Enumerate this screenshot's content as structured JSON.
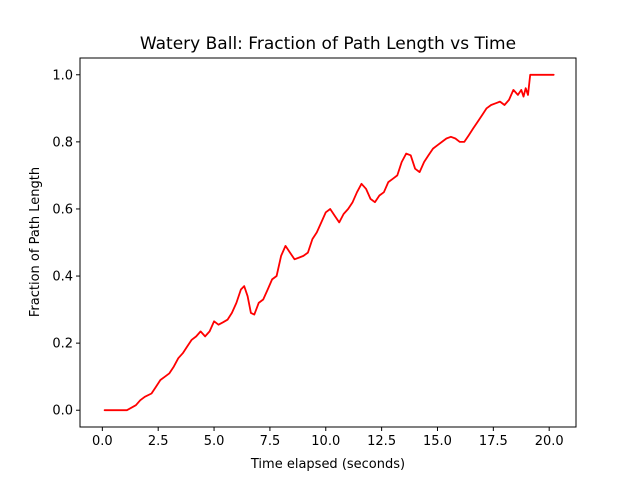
{
  "chart_data": {
    "type": "line",
    "title": "Watery Ball: Fraction of Path Length vs Time",
    "xlabel": "Time elapsed (seconds)",
    "ylabel": "Fraction of Path Length",
    "xlim": [
      -1.0,
      21.2
    ],
    "ylim": [
      -0.05,
      1.05
    ],
    "xticks": [
      "0.0",
      "2.5",
      "5.0",
      "7.5",
      "10.0",
      "12.5",
      "15.0",
      "17.5",
      "20.0"
    ],
    "yticks": [
      "0.0",
      "0.2",
      "0.4",
      "0.6",
      "0.8",
      "1.0"
    ],
    "grid": false,
    "legend": "none",
    "series": [
      {
        "color": "#ff0000",
        "x": [
          0.1,
          1.0,
          1.1,
          1.5,
          1.7,
          1.9,
          2.2,
          2.4,
          2.6,
          2.8,
          3.0,
          3.2,
          3.4,
          3.6,
          3.8,
          4.0,
          4.2,
          4.4,
          4.6,
          4.8,
          5.0,
          5.2,
          5.4,
          5.6,
          5.8,
          6.0,
          6.2,
          6.35,
          6.5,
          6.65,
          6.8,
          7.0,
          7.2,
          7.4,
          7.6,
          7.8,
          8.0,
          8.2,
          8.4,
          8.6,
          8.8,
          9.0,
          9.2,
          9.4,
          9.6,
          9.8,
          10.0,
          10.2,
          10.4,
          10.6,
          10.8,
          11.0,
          11.2,
          11.4,
          11.6,
          11.8,
          12.0,
          12.2,
          12.4,
          12.6,
          12.8,
          13.0,
          13.2,
          13.4,
          13.6,
          13.8,
          14.0,
          14.2,
          14.4,
          14.6,
          14.8,
          15.0,
          15.2,
          15.4,
          15.6,
          15.8,
          16.0,
          16.2,
          16.4,
          16.6,
          16.8,
          17.0,
          17.2,
          17.4,
          17.6,
          17.8,
          18.0,
          18.2,
          18.4,
          18.6,
          18.75,
          18.85,
          18.95,
          19.05,
          19.15,
          19.2,
          19.3,
          20.2
        ],
        "y": [
          0.0,
          0.0,
          0.0,
          0.015,
          0.03,
          0.04,
          0.05,
          0.07,
          0.09,
          0.1,
          0.11,
          0.13,
          0.155,
          0.17,
          0.19,
          0.21,
          0.22,
          0.235,
          0.22,
          0.235,
          0.265,
          0.255,
          0.262,
          0.27,
          0.29,
          0.32,
          0.36,
          0.37,
          0.34,
          0.29,
          0.285,
          0.32,
          0.33,
          0.36,
          0.39,
          0.4,
          0.46,
          0.49,
          0.47,
          0.45,
          0.455,
          0.46,
          0.47,
          0.51,
          0.53,
          0.56,
          0.59,
          0.6,
          0.58,
          0.56,
          0.585,
          0.6,
          0.62,
          0.65,
          0.675,
          0.66,
          0.63,
          0.62,
          0.64,
          0.65,
          0.68,
          0.69,
          0.7,
          0.74,
          0.765,
          0.76,
          0.72,
          0.71,
          0.74,
          0.76,
          0.78,
          0.79,
          0.8,
          0.81,
          0.815,
          0.81,
          0.8,
          0.8,
          0.82,
          0.84,
          0.86,
          0.88,
          0.9,
          0.91,
          0.915,
          0.92,
          0.91,
          0.925,
          0.955,
          0.94,
          0.955,
          0.935,
          0.96,
          0.94,
          1.0,
          1.0,
          1.0,
          1.0
        ]
      }
    ]
  }
}
